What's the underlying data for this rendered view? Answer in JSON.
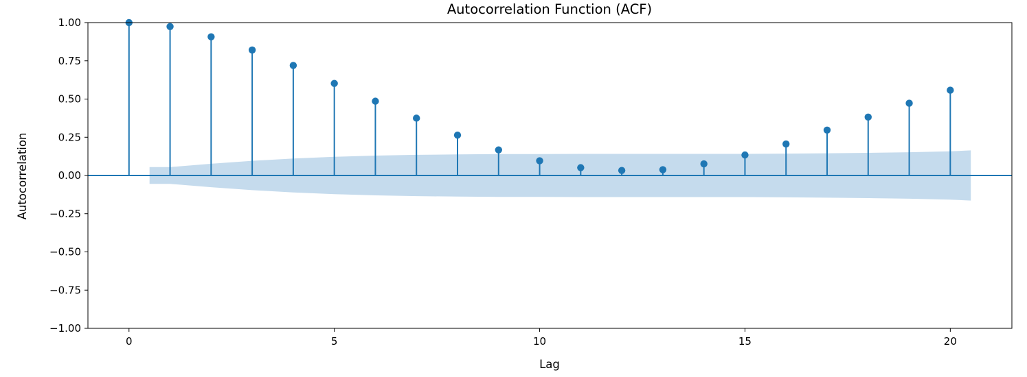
{
  "chart_data": {
    "type": "stem",
    "title": "Autocorrelation Function (ACF)",
    "xlabel": "Lag",
    "ylabel": "Autocorrelation",
    "xlim": [
      -1,
      21.5
    ],
    "ylim": [
      -1.0,
      1.0
    ],
    "xticks": [
      0,
      5,
      10,
      15,
      20
    ],
    "yticks": [
      -1.0,
      -0.75,
      -0.5,
      -0.25,
      0.0,
      0.25,
      0.5,
      0.75,
      1.0
    ],
    "xtick_labels": [
      "0",
      "5",
      "10",
      "15",
      "20"
    ],
    "ytick_labels": [
      "−1.00",
      "−0.75",
      "−0.50",
      "−0.25",
      "0.00",
      "0.25",
      "0.50",
      "0.75",
      "1.00"
    ],
    "grid": false,
    "series": [
      {
        "lags": [
          0,
          1,
          2,
          3,
          4,
          5,
          6,
          7,
          8,
          9,
          10,
          11,
          12,
          13,
          14,
          15,
          16,
          17,
          18,
          19,
          20
        ],
        "values": [
          1.0,
          0.974,
          0.907,
          0.821,
          0.72,
          0.602,
          0.486,
          0.375,
          0.264,
          0.167,
          0.096,
          0.051,
          0.033,
          0.038,
          0.076,
          0.134,
          0.206,
          0.297,
          0.382,
          0.473,
          0.558
        ]
      }
    ],
    "confidence_band": {
      "lags": [
        0.5,
        1,
        2,
        3,
        4,
        5,
        6,
        7,
        8,
        9,
        10,
        11,
        12,
        13,
        14,
        15,
        16,
        17,
        18,
        19,
        20,
        20.5
      ],
      "upper": [
        0.055,
        0.055,
        0.077,
        0.096,
        0.111,
        0.122,
        0.13,
        0.135,
        0.138,
        0.14,
        0.14,
        0.141,
        0.141,
        0.141,
        0.141,
        0.141,
        0.143,
        0.145,
        0.148,
        0.152,
        0.158,
        0.164
      ]
    },
    "colors": {
      "stem": "#1f77b4",
      "band": "#c5dbed",
      "axis": "#000000"
    }
  }
}
